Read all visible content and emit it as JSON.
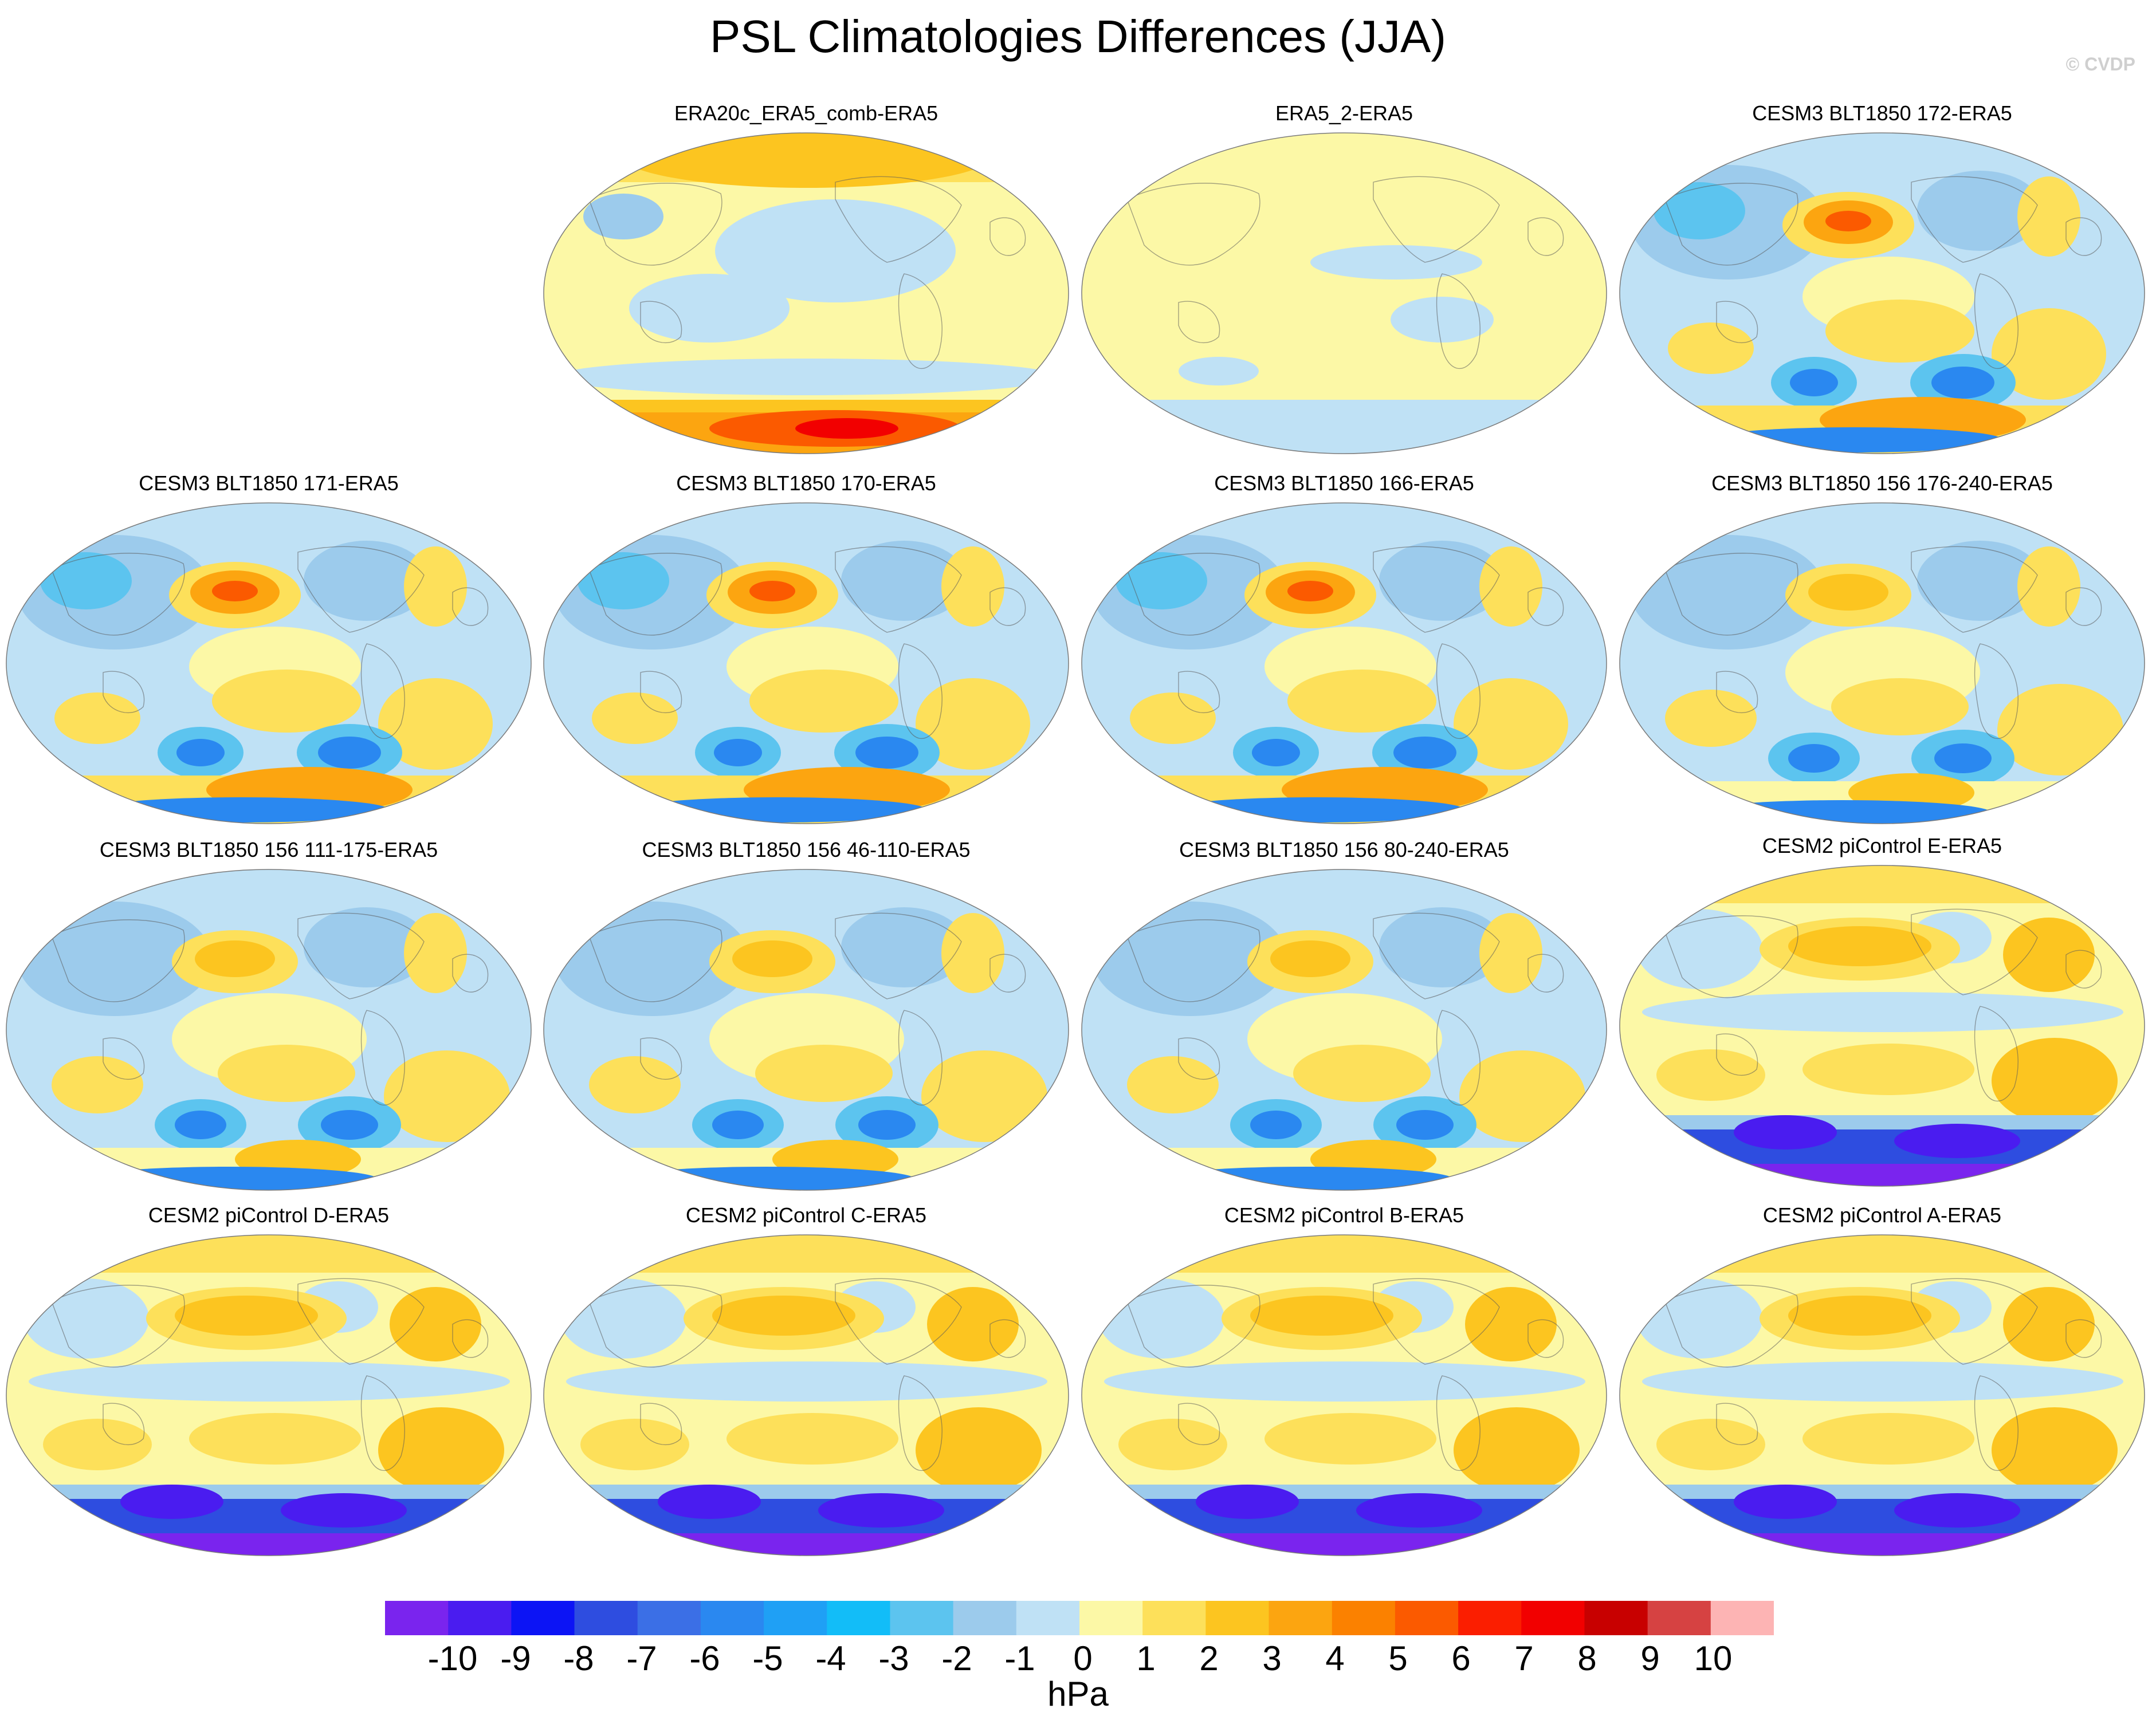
{
  "title": "PSL Climatologies Differences (JJA)",
  "copyright": "© CVDP",
  "units": "hPa",
  "colorbar": {
    "tick_labels": [
      "-10",
      "-9",
      "-8",
      "-7",
      "-6",
      "-5",
      "-4",
      "-3",
      "-2",
      "-1",
      "0",
      "1",
      "2",
      "3",
      "4",
      "5",
      "6",
      "7",
      "8",
      "9",
      "10"
    ],
    "colors": [
      "#7a24ee",
      "#4a1cf0",
      "#0c14f5",
      "#2e4de0",
      "#3b6fe6",
      "#2a88f0",
      "#1fa0f5",
      "#12bdf8",
      "#5cc4ef",
      "#9ccbec",
      "#bfe1f5",
      "#fcf8a6",
      "#fde05a",
      "#fcc520",
      "#fca510",
      "#fb8100",
      "#fb5a00",
      "#fb1e00",
      "#f20000",
      "#c80000",
      "#d64242",
      "#fdb4b4"
    ]
  },
  "panels": [
    {
      "title": "ERA20c_ERA5_comb-ERA5",
      "pattern": "era20c"
    },
    {
      "title": "ERA5_2-ERA5",
      "pattern": "era5_2"
    },
    {
      "title": "CESM3 BLT1850 172-ERA5",
      "pattern": "cesm3"
    },
    {
      "title": "CESM3 BLT1850 171-ERA5",
      "pattern": "cesm3"
    },
    {
      "title": "CESM3 BLT1850 170-ERA5",
      "pattern": "cesm3"
    },
    {
      "title": "CESM3 BLT1850 166-ERA5",
      "pattern": "cesm3"
    },
    {
      "title": "CESM3 BLT1850 156 176-240-ERA5",
      "pattern": "cesm3b"
    },
    {
      "title": "CESM3 BLT1850 156 111-175-ERA5",
      "pattern": "cesm3b"
    },
    {
      "title": "CESM3 BLT1850 156 46-110-ERA5",
      "pattern": "cesm3b"
    },
    {
      "title": "CESM3 BLT1850 156 80-240-ERA5",
      "pattern": "cesm3b"
    },
    {
      "title": "CESM2 piControl E-ERA5",
      "pattern": "cesm2"
    },
    {
      "title": "CESM2 piControl D-ERA5",
      "pattern": "cesm2"
    },
    {
      "title": "CESM2 piControl C-ERA5",
      "pattern": "cesm2"
    },
    {
      "title": "CESM2 piControl B-ERA5",
      "pattern": "cesm2"
    },
    {
      "title": "CESM2 piControl A-ERA5",
      "pattern": "cesm2"
    }
  ]
}
